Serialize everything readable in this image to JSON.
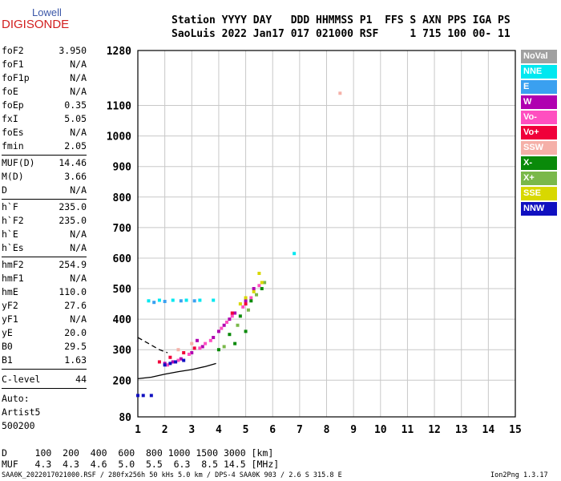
{
  "logo": {
    "line1": "Lowell",
    "line2": "DIGISONDE"
  },
  "header": {
    "line1": "Station YYYY DAY   DDD HHMMSS P1  FFS S AXN PPS IGA PS",
    "line2": "SaoLuis 2022 Jan17 017 021000 RSF     1 715 100 00- 11"
  },
  "params_group1": [
    {
      "k": "foF2",
      "v": "3.950"
    },
    {
      "k": "foF1",
      "v": "N/A"
    },
    {
      "k": "foF1p",
      "v": "N/A"
    },
    {
      "k": "foE",
      "v": "N/A"
    },
    {
      "k": "foEp",
      "v": "0.35"
    },
    {
      "k": "fxI",
      "v": "5.05"
    },
    {
      "k": "foEs",
      "v": "N/A"
    },
    {
      "k": "fmin",
      "v": "2.05"
    }
  ],
  "params_group2": [
    {
      "k": "MUF(D)",
      "v": "14.46"
    },
    {
      "k": "M(D)",
      "v": "3.66"
    },
    {
      "k": "D",
      "v": "N/A"
    }
  ],
  "params_group3": [
    {
      "k": "h`F",
      "v": "235.0"
    },
    {
      "k": "h`F2",
      "v": "235.0"
    },
    {
      "k": "h`E",
      "v": "N/A"
    },
    {
      "k": "h`Es",
      "v": "N/A"
    }
  ],
  "params_group4": [
    {
      "k": "hmF2",
      "v": "254.9"
    },
    {
      "k": "hmF1",
      "v": "N/A"
    },
    {
      "k": "hmE",
      "v": "110.0"
    },
    {
      "k": "yF2",
      "v": "27.6"
    },
    {
      "k": "yF1",
      "v": "N/A"
    },
    {
      "k": "yE",
      "v": "20.0"
    },
    {
      "k": "B0",
      "v": "29.5"
    },
    {
      "k": "B1",
      "v": "1.63"
    }
  ],
  "clevel": {
    "k": "C-level",
    "v": "44"
  },
  "auto": {
    "l1": "Auto:",
    "l2": "Artist5",
    "l3": "500200"
  },
  "bottom_table": {
    "d_row": "D     100  200  400  600  800 1000 1500 3000 [km]",
    "muf_row": "MUF   4.3  4.3  4.6  5.0  5.5  6.3  8.5 14.5 [MHz]"
  },
  "footer": {
    "left": "SAA0K_2022017021000.RSF / 280fx256h 50 kHs 5.0 km / DPS-4 SAA0K 903 / 2.6 S 315.8 E",
    "right": "Ion2Png 1.3.17"
  },
  "legend": [
    {
      "label": "NoVal",
      "color": "#a0a0a0"
    },
    {
      "label": "NNE",
      "color": "#00e8f0"
    },
    {
      "label": "E",
      "color": "#3aa0f0"
    },
    {
      "label": "W",
      "color": "#b000b0"
    },
    {
      "label": "Vo-",
      "color": "#ff4fc0"
    },
    {
      "label": "Vo+",
      "color": "#f0003a"
    },
    {
      "label": "SSW",
      "color": "#f5b0a8"
    },
    {
      "label": "X-",
      "color": "#0a8a0a"
    },
    {
      "label": "X+",
      "color": "#7ab84a"
    },
    {
      "label": "SSE",
      "color": "#d8d800"
    },
    {
      "label": "NNW",
      "color": "#1010c0"
    }
  ],
  "chart_data": {
    "type": "scatter",
    "xlabel": "",
    "ylabel": "",
    "x_range": [
      1,
      15
    ],
    "y_range": [
      80,
      1280
    ],
    "x_ticks": [
      1,
      2,
      3,
      4,
      5,
      6,
      7,
      8,
      9,
      10,
      11,
      12,
      13,
      14,
      15
    ],
    "y_ticks": [
      80,
      200,
      300,
      400,
      500,
      600,
      700,
      800,
      900,
      1000,
      1100,
      1280
    ],
    "grid": true,
    "series": [
      {
        "name": "W",
        "color": "#b000b0",
        "points": [
          [
            2.0,
            255
          ],
          [
            2.3,
            260
          ],
          [
            2.6,
            270
          ],
          [
            3.0,
            290
          ],
          [
            3.4,
            310
          ],
          [
            3.8,
            340
          ],
          [
            4.2,
            380
          ],
          [
            4.6,
            420
          ],
          [
            5.0,
            460
          ],
          [
            5.3,
            500
          ],
          [
            3.2,
            330
          ],
          [
            4.0,
            360
          ],
          [
            4.4,
            400
          ]
        ]
      },
      {
        "name": "Vo-",
        "color": "#ff4fc0",
        "points": [
          [
            2.1,
            250
          ],
          [
            2.5,
            265
          ],
          [
            2.9,
            285
          ],
          [
            3.3,
            305
          ],
          [
            3.7,
            330
          ],
          [
            4.1,
            370
          ],
          [
            4.5,
            410
          ],
          [
            4.9,
            440
          ],
          [
            5.2,
            470
          ],
          [
            5.5,
            510
          ],
          [
            3.5,
            320
          ],
          [
            4.3,
            390
          ]
        ]
      },
      {
        "name": "X-",
        "color": "#0a8a0a",
        "points": [
          [
            4.0,
            300
          ],
          [
            4.4,
            350
          ],
          [
            4.8,
            410
          ],
          [
            5.2,
            460
          ],
          [
            5.6,
            500
          ],
          [
            4.6,
            320
          ],
          [
            5.0,
            360
          ]
        ]
      },
      {
        "name": "X+",
        "color": "#7ab84a",
        "points": [
          [
            4.2,
            310
          ],
          [
            4.7,
            380
          ],
          [
            5.1,
            430
          ],
          [
            5.4,
            480
          ],
          [
            5.7,
            520
          ]
        ]
      },
      {
        "name": "SSE",
        "color": "#d8d800",
        "points": [
          [
            4.8,
            450
          ],
          [
            5.0,
            470
          ],
          [
            5.3,
            490
          ],
          [
            5.6,
            520
          ],
          [
            5.5,
            550
          ]
        ]
      },
      {
        "name": "NNE",
        "color": "#00e8f0",
        "points": [
          [
            1.4,
            460
          ],
          [
            1.8,
            462
          ],
          [
            2.3,
            462
          ],
          [
            2.8,
            462
          ],
          [
            3.3,
            462
          ],
          [
            3.8,
            462
          ],
          [
            6.8,
            615
          ]
        ]
      },
      {
        "name": "E",
        "color": "#3aa0f0",
        "points": [
          [
            1.6,
            455
          ],
          [
            2.0,
            458
          ],
          [
            2.6,
            460
          ],
          [
            3.1,
            460
          ]
        ]
      },
      {
        "name": "NNW",
        "color": "#1010c0",
        "points": [
          [
            1.0,
            150
          ],
          [
            1.2,
            150
          ],
          [
            1.5,
            150
          ],
          [
            2.0,
            250
          ],
          [
            2.2,
            255
          ],
          [
            2.4,
            260
          ],
          [
            2.7,
            265
          ]
        ]
      },
      {
        "name": "Vo+",
        "color": "#f0003a",
        "points": [
          [
            1.8,
            260
          ],
          [
            2.2,
            275
          ],
          [
            2.7,
            290
          ],
          [
            3.1,
            305
          ],
          [
            4.5,
            420
          ],
          [
            5.0,
            450
          ]
        ]
      },
      {
        "name": "SSW",
        "color": "#f5b0a8",
        "points": [
          [
            8.5,
            1140
          ],
          [
            2.5,
            300
          ],
          [
            3.0,
            320
          ]
        ]
      }
    ],
    "traces": [
      {
        "name": "o-trace",
        "style": "solid",
        "points": [
          [
            1.0,
            205
          ],
          [
            1.5,
            210
          ],
          [
            2.0,
            220
          ],
          [
            2.5,
            228
          ],
          [
            3.0,
            235
          ],
          [
            3.5,
            245
          ],
          [
            3.9,
            255
          ]
        ]
      },
      {
        "name": "profile",
        "style": "dashed",
        "points": [
          [
            1.0,
            340
          ],
          [
            1.4,
            320
          ],
          [
            1.8,
            300
          ],
          [
            2.1,
            290
          ]
        ]
      }
    ]
  }
}
